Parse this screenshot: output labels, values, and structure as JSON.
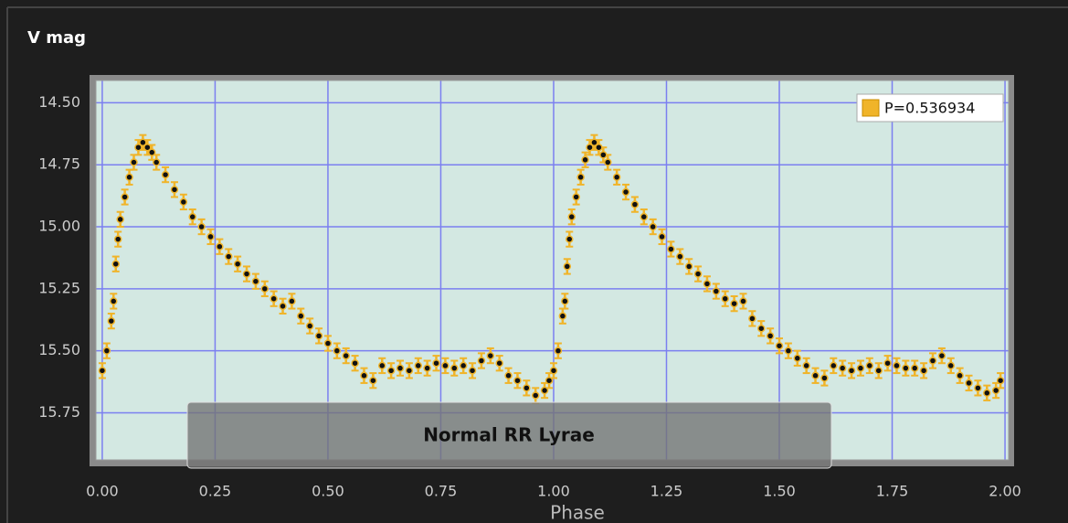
{
  "chart_data": {
    "type": "errorscatter",
    "title": "V mag",
    "xlabel": "Phase",
    "annotation": "Normal RR Lyrae",
    "xlim": [
      -0.014,
      2.008
    ],
    "ylim": [
      14.41,
      15.94
    ],
    "y_inverted": true,
    "grid": true,
    "legend": "upper right",
    "xticks": [
      {
        "value": 0,
        "label": "0.00"
      },
      {
        "value": 0.25,
        "label": "0.25"
      },
      {
        "value": 0.5,
        "label": "0.50"
      },
      {
        "value": 0.75,
        "label": "0.75"
      },
      {
        "value": 1,
        "label": "1.00"
      },
      {
        "value": 1.25,
        "label": "1.25"
      },
      {
        "value": 1.5,
        "label": "1.50"
      },
      {
        "value": 1.75,
        "label": "1.75"
      },
      {
        "value": 2,
        "label": "2.00"
      }
    ],
    "yticks": [
      {
        "value": 14.5,
        "label": "14.50"
      },
      {
        "value": 14.75,
        "label": "14.75"
      },
      {
        "value": 15,
        "label": "15.00"
      },
      {
        "value": 15.25,
        "label": "15.25"
      },
      {
        "value": 15.5,
        "label": "15.50"
      },
      {
        "value": 15.75,
        "label": "15.75"
      }
    ],
    "series": [
      {
        "name": "P=0.536934",
        "color": "#f0b429",
        "x": [
          0.0,
          0.01,
          0.02,
          0.025,
          0.03,
          0.035,
          0.04,
          0.05,
          0.06,
          0.07,
          0.08,
          0.09,
          0.1,
          0.11,
          0.12,
          0.14,
          0.16,
          0.18,
          0.2,
          0.22,
          0.24,
          0.26,
          0.28,
          0.3,
          0.32,
          0.34,
          0.36,
          0.38,
          0.4,
          0.42,
          0.44,
          0.46,
          0.48,
          0.5,
          0.52,
          0.54,
          0.56,
          0.58,
          0.6,
          0.62,
          0.64,
          0.66,
          0.68,
          0.7,
          0.72,
          0.74,
          0.76,
          0.78,
          0.8,
          0.82,
          0.84,
          0.86,
          0.88,
          0.9,
          0.92,
          0.94,
          0.96,
          0.98,
          0.99,
          1.0,
          1.01,
          1.02,
          1.025,
          1.03,
          1.035,
          1.04,
          1.05,
          1.06,
          1.07,
          1.08,
          1.09,
          1.1,
          1.11,
          1.12,
          1.14,
          1.16,
          1.18,
          1.2,
          1.22,
          1.24,
          1.26,
          1.28,
          1.3,
          1.32,
          1.34,
          1.36,
          1.38,
          1.4,
          1.42,
          1.44,
          1.46,
          1.48,
          1.5,
          1.52,
          1.54,
          1.56,
          1.58,
          1.6,
          1.62,
          1.64,
          1.66,
          1.68,
          1.7,
          1.72,
          1.74,
          1.76,
          1.78,
          1.8,
          1.82,
          1.84,
          1.86,
          1.88,
          1.9,
          1.92,
          1.94,
          1.96,
          1.98,
          1.99
        ],
        "values": [
          15.58,
          15.5,
          15.38,
          15.3,
          15.15,
          15.05,
          14.97,
          14.88,
          14.8,
          14.74,
          14.68,
          14.66,
          14.68,
          14.7,
          14.74,
          14.79,
          14.85,
          14.9,
          14.96,
          15.0,
          15.04,
          15.08,
          15.12,
          15.15,
          15.19,
          15.22,
          15.25,
          15.29,
          15.32,
          15.3,
          15.36,
          15.4,
          15.44,
          15.47,
          15.5,
          15.52,
          15.55,
          15.6,
          15.62,
          15.56,
          15.58,
          15.57,
          15.58,
          15.56,
          15.57,
          15.55,
          15.56,
          15.57,
          15.56,
          15.58,
          15.54,
          15.52,
          15.55,
          15.6,
          15.62,
          15.65,
          15.68,
          15.66,
          15.62,
          15.58,
          15.5,
          15.36,
          15.3,
          15.16,
          15.05,
          14.96,
          14.88,
          14.8,
          14.73,
          14.68,
          14.66,
          14.68,
          14.71,
          14.74,
          14.8,
          14.86,
          14.91,
          14.96,
          15.0,
          15.04,
          15.09,
          15.12,
          15.16,
          15.19,
          15.23,
          15.26,
          15.29,
          15.31,
          15.3,
          15.37,
          15.41,
          15.44,
          15.48,
          15.5,
          15.53,
          15.56,
          15.6,
          15.61,
          15.56,
          15.57,
          15.58,
          15.57,
          15.56,
          15.58,
          15.55,
          15.56,
          15.57,
          15.57,
          15.58,
          15.54,
          15.52,
          15.56,
          15.6,
          15.63,
          15.65,
          15.67,
          15.66,
          15.62
        ],
        "errors": [
          0.03,
          0.03,
          0.03,
          0.03,
          0.03,
          0.03,
          0.03,
          0.03,
          0.03,
          0.03,
          0.03,
          0.03,
          0.03,
          0.03,
          0.03,
          0.03,
          0.03,
          0.03,
          0.03,
          0.03,
          0.03,
          0.03,
          0.03,
          0.03,
          0.03,
          0.03,
          0.03,
          0.03,
          0.03,
          0.03,
          0.03,
          0.03,
          0.03,
          0.03,
          0.03,
          0.03,
          0.03,
          0.03,
          0.03,
          0.03,
          0.03,
          0.03,
          0.03,
          0.03,
          0.03,
          0.03,
          0.03,
          0.03,
          0.03,
          0.03,
          0.03,
          0.03,
          0.03,
          0.03,
          0.03,
          0.03,
          0.03,
          0.03,
          0.03,
          0.03,
          0.03,
          0.03,
          0.03,
          0.03,
          0.03,
          0.03,
          0.03,
          0.03,
          0.03,
          0.03,
          0.03,
          0.03,
          0.03,
          0.03,
          0.03,
          0.03,
          0.03,
          0.03,
          0.03,
          0.03,
          0.03,
          0.03,
          0.03,
          0.03,
          0.03,
          0.03,
          0.03,
          0.03,
          0.03,
          0.03,
          0.03,
          0.03,
          0.03,
          0.03,
          0.03,
          0.03,
          0.03,
          0.03,
          0.03,
          0.03,
          0.03,
          0.03,
          0.03,
          0.03,
          0.03,
          0.03,
          0.03,
          0.03,
          0.03,
          0.03,
          0.03,
          0.03,
          0.03,
          0.03,
          0.03,
          0.03,
          0.03,
          0.03
        ]
      }
    ]
  }
}
